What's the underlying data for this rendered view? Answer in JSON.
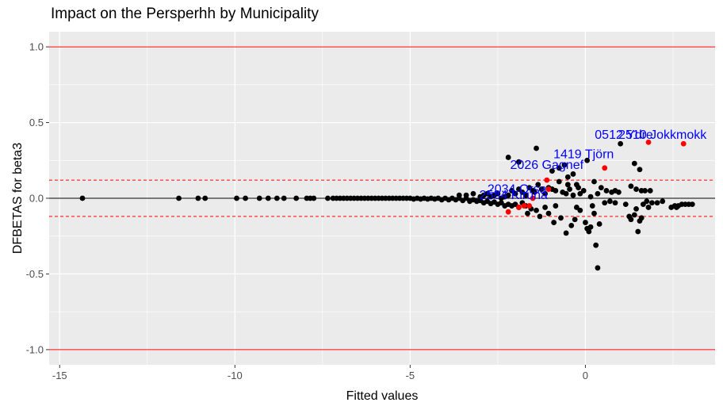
{
  "chart_data": {
    "type": "scatter",
    "title": "Impact on the Persperhh by Municipality",
    "xlabel": "Fitted values",
    "ylabel": "DFBETAS for beta3",
    "xlim": [
      -15.3,
      3.7
    ],
    "ylim": [
      -1.1,
      1.1
    ],
    "x_ticks": [
      -15,
      -10,
      -5,
      0
    ],
    "x_tick_labels": [
      "-15",
      "-10",
      "-5",
      "0"
    ],
    "y_ticks": [
      -1.0,
      -0.5,
      0.0,
      0.5,
      1.0
    ],
    "y_tick_labels": [
      "-1.0",
      "-0.5",
      "0.0",
      "0.5",
      "1.0"
    ],
    "grid": true,
    "reference_lines": {
      "solid_red": [
        1.0,
        -1.0
      ],
      "dashed_red": [
        0.12,
        -0.12
      ],
      "solid_black": [
        0.0
      ]
    },
    "colors": {
      "panel_background": "#ebebeb",
      "grid": "#ffffff",
      "normal_point": "#000000",
      "influential_point": "#ff0000",
      "label_text": "#0000ff",
      "reference_line": "#ff0000"
    },
    "series": [
      {
        "color": "#000000",
        "points": [
          [
            -14.35,
            0.0
          ],
          [
            -11.6,
            0.0
          ],
          [
            -11.05,
            0.0
          ],
          [
            -10.85,
            0.0
          ],
          [
            -9.95,
            0.0
          ],
          [
            -9.7,
            0.0
          ],
          [
            -9.3,
            0.0
          ],
          [
            -9.05,
            0.0
          ],
          [
            -8.8,
            0.0
          ],
          [
            -8.6,
            0.0
          ],
          [
            -8.25,
            0.0
          ],
          [
            -7.95,
            0.0
          ],
          [
            -7.85,
            0.0
          ],
          [
            -7.75,
            0.0
          ],
          [
            -7.35,
            0.0
          ],
          [
            -7.2,
            0.0
          ],
          [
            -7.1,
            0.0
          ],
          [
            -7.0,
            0.0
          ],
          [
            -6.9,
            0.0
          ],
          [
            -6.8,
            0.0
          ],
          [
            -6.7,
            0.0
          ],
          [
            -6.6,
            0.0
          ],
          [
            -6.5,
            0.0
          ],
          [
            -6.4,
            0.0
          ],
          [
            -6.3,
            0.0
          ],
          [
            -6.2,
            0.0
          ],
          [
            -6.1,
            0.0
          ],
          [
            -6.0,
            0.0
          ],
          [
            -5.9,
            0.0
          ],
          [
            -5.8,
            0.0
          ],
          [
            -5.7,
            0.0
          ],
          [
            -5.6,
            0.0
          ],
          [
            -5.5,
            0.0
          ],
          [
            -5.4,
            0.0
          ],
          [
            -5.3,
            0.0
          ],
          [
            -5.2,
            0.0
          ],
          [
            -5.1,
            0.0
          ],
          [
            -5.0,
            0.0
          ],
          [
            -4.9,
            -0.005
          ],
          [
            -4.8,
            0.0
          ],
          [
            -4.7,
            -0.005
          ],
          [
            -4.6,
            0.0
          ],
          [
            -4.5,
            -0.005
          ],
          [
            -4.4,
            0.0
          ],
          [
            -4.3,
            -0.005
          ],
          [
            -4.2,
            0.0
          ],
          [
            -4.1,
            -0.01
          ],
          [
            -4.0,
            0.0
          ],
          [
            -3.9,
            -0.01
          ],
          [
            -3.8,
            0.0
          ],
          [
            -3.7,
            -0.01
          ],
          [
            -3.6,
            0.0
          ],
          [
            -3.5,
            -0.015
          ],
          [
            -3.4,
            0.0
          ],
          [
            -3.3,
            -0.02
          ],
          [
            -3.2,
            -0.01
          ],
          [
            -3.1,
            -0.02
          ],
          [
            -3.0,
            -0.015
          ],
          [
            -2.9,
            -0.03
          ],
          [
            -2.8,
            -0.02
          ],
          [
            -2.7,
            -0.035
          ],
          [
            -2.6,
            -0.025
          ],
          [
            -2.5,
            -0.04
          ],
          [
            -2.4,
            -0.03
          ],
          [
            -2.3,
            -0.05
          ],
          [
            -2.2,
            -0.04
          ],
          [
            -2.1,
            -0.05
          ],
          [
            -2.0,
            -0.04
          ],
          [
            -1.9,
            -0.06
          ],
          [
            -1.8,
            -0.03
          ],
          [
            -1.7,
            -0.05
          ],
          [
            -1.65,
            -0.1
          ],
          [
            -1.55,
            -0.07
          ],
          [
            -1.4,
            -0.08
          ],
          [
            -1.3,
            -0.12
          ],
          [
            -1.15,
            -0.06
          ],
          [
            -1.05,
            -0.1
          ],
          [
            -0.9,
            -0.16
          ],
          [
            -0.85,
            -0.05
          ],
          [
            -0.7,
            -0.13
          ],
          [
            -0.55,
            -0.23
          ],
          [
            -0.4,
            -0.18
          ],
          [
            -0.3,
            -0.14
          ],
          [
            -3.6,
            0.02
          ],
          [
            -3.4,
            0.02
          ],
          [
            -3.2,
            0.03
          ],
          [
            -3.0,
            0.01
          ],
          [
            -2.9,
            0.02
          ],
          [
            -2.8,
            0.03
          ],
          [
            -2.7,
            0.01
          ],
          [
            -2.6,
            0.02
          ],
          [
            -2.5,
            0.03
          ],
          [
            -2.4,
            0.0
          ],
          [
            -2.3,
            0.01
          ],
          [
            -2.2,
            0.02
          ],
          [
            -2.1,
            0.05
          ],
          [
            -2.0,
            0.03
          ],
          [
            -1.9,
            0.06
          ],
          [
            -1.8,
            0.04
          ],
          [
            -1.7,
            0.02
          ],
          [
            -1.6,
            0.07
          ],
          [
            -1.5,
            0.05
          ],
          [
            -1.45,
            0.04
          ],
          [
            -1.35,
            0.09
          ],
          [
            -1.25,
            0.06
          ],
          [
            -1.15,
            0.03
          ],
          [
            -1.05,
            0.07
          ],
          [
            -0.95,
            0.06
          ],
          [
            -0.85,
            0.05
          ],
          [
            -0.75,
            0.11
          ],
          [
            -0.65,
            0.04
          ],
          [
            -0.55,
            0.03
          ],
          [
            -0.45,
            0.06
          ],
          [
            -0.35,
            0.02
          ],
          [
            -0.25,
            0.09
          ],
          [
            -0.15,
            0.03
          ],
          [
            -0.05,
            0.05
          ],
          [
            -0.5,
            0.09
          ],
          [
            -0.95,
            0.18
          ],
          [
            -0.75,
            0.2
          ],
          [
            -0.6,
            0.22
          ],
          [
            -0.5,
            0.14
          ],
          [
            -0.35,
            0.16
          ],
          [
            -0.2,
            0.07
          ],
          [
            0.05,
            0.25
          ],
          [
            0.25,
            0.11
          ],
          [
            0.45,
            0.07
          ],
          [
            0.6,
            0.05
          ],
          [
            0.75,
            0.04
          ],
          [
            0.95,
            0.04
          ],
          [
            0.85,
            0.05
          ],
          [
            0.35,
            0.03
          ],
          [
            0.15,
            0.01
          ],
          [
            -1.4,
            0.33
          ],
          [
            -2.2,
            0.27
          ],
          [
            -1.9,
            0.24
          ],
          [
            1.0,
            0.36
          ],
          [
            1.4,
            0.23
          ],
          [
            1.55,
            0.19
          ],
          [
            1.3,
            0.08
          ],
          [
            1.45,
            0.06
          ],
          [
            1.6,
            0.05
          ],
          [
            1.7,
            0.05
          ],
          [
            1.85,
            0.05
          ],
          [
            -0.25,
            -0.06
          ],
          [
            -0.15,
            -0.08
          ],
          [
            0.0,
            -0.16
          ],
          [
            0.05,
            -0.2
          ],
          [
            0.15,
            -0.19
          ],
          [
            0.25,
            -0.1
          ],
          [
            0.1,
            -0.22
          ],
          [
            0.2,
            -0.05
          ],
          [
            0.4,
            -0.17
          ],
          [
            0.3,
            -0.31
          ],
          [
            0.35,
            -0.46
          ],
          [
            0.55,
            -0.03
          ],
          [
            0.7,
            -0.02
          ],
          [
            0.85,
            -0.03
          ],
          [
            1.15,
            -0.04
          ],
          [
            1.25,
            -0.12
          ],
          [
            1.3,
            -0.14
          ],
          [
            1.4,
            -0.11
          ],
          [
            1.45,
            -0.07
          ],
          [
            1.5,
            -0.22
          ],
          [
            1.55,
            -0.15
          ],
          [
            1.6,
            -0.13
          ],
          [
            1.65,
            -0.04
          ],
          [
            1.75,
            -0.02
          ],
          [
            1.8,
            -0.06
          ],
          [
            1.9,
            -0.03
          ],
          [
            2.05,
            -0.03
          ],
          [
            2.2,
            -0.02
          ],
          [
            2.45,
            -0.06
          ],
          [
            2.55,
            -0.05
          ],
          [
            2.65,
            -0.05
          ],
          [
            2.75,
            -0.04
          ],
          [
            2.85,
            -0.04
          ],
          [
            2.95,
            -0.04
          ],
          [
            3.05,
            -0.04
          ],
          [
            2.6,
            -0.06
          ]
        ]
      },
      {
        "color": "#ff0000",
        "points": [
          [
            -2.2,
            -0.09
          ],
          [
            -1.9,
            -0.06
          ],
          [
            -1.75,
            -0.05
          ],
          [
            -1.6,
            -0.05
          ],
          [
            -1.5,
            0.0
          ],
          [
            -1.1,
            0.12
          ],
          [
            -1.05,
            0.06
          ],
          [
            0.55,
            0.2
          ],
          [
            1.8,
            0.37
          ],
          [
            2.8,
            0.36
          ]
        ]
      }
    ],
    "annotations": [
      {
        "text": "0512 Ydre",
        "x": 1.1,
        "y": 0.42
      },
      {
        "text": "2510 Jokkmokk",
        "x": 2.2,
        "y": 0.42
      },
      {
        "text": "1419 Tjörn",
        "x": -0.05,
        "y": 0.29
      },
      {
        "text": "2026 Gagnef",
        "x": -1.1,
        "y": 0.22
      },
      {
        "text": "2034 Orsa",
        "x": -1.95,
        "y": 0.06
      },
      {
        "text": "2584 Kiruna",
        "x": -2.05,
        "y": 0.02
      }
    ]
  }
}
